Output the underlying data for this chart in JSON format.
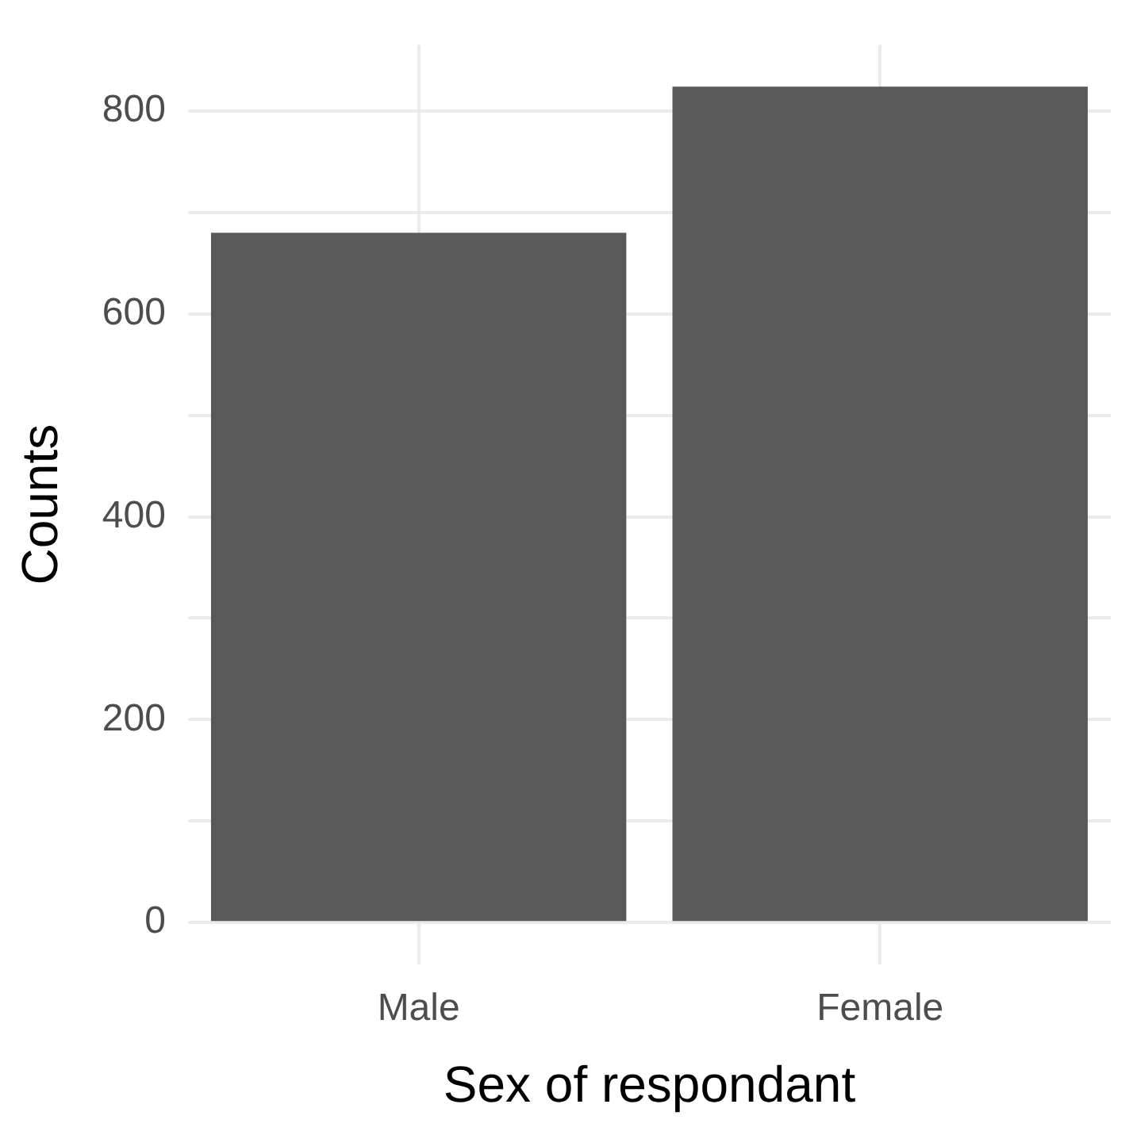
{
  "chart_data": {
    "type": "bar",
    "xlabel": "Sex of respondant",
    "ylabel": "Counts",
    "categories": [
      "Male",
      "Female"
    ],
    "values": [
      680,
      824
    ],
    "color": "#595959",
    "ylim": [
      -41,
      865
    ],
    "yticks": [
      0,
      {
        "value": 100,
        "label": null
      },
      200,
      {
        "value": 300,
        "label": null
      },
      400,
      {
        "value": 500,
        "label": null
      },
      600,
      {
        "value": 700,
        "label": null
      },
      800
    ],
    "grid": true,
    "legend": false
  }
}
